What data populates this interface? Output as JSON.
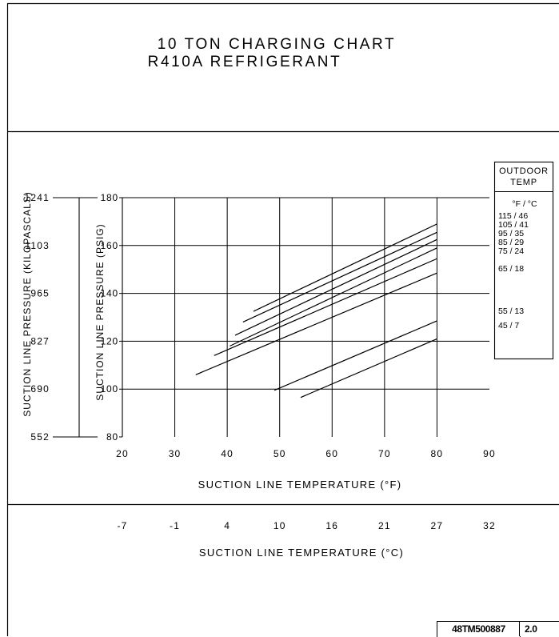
{
  "page": {
    "title_line1": "10 TON CHARGING CHART",
    "title_line2": "R410A REFRIGERANT",
    "doc_number": "48TM500887",
    "doc_revision": "2.0"
  },
  "chart_data": {
    "type": "line",
    "xlabel": "SUCTION LINE TEMPERATURE (°F)",
    "xlabel_secondary": "SUCTION LINE TEMPERATURE (°C)",
    "ylabel": "SUCTION LINE PRESSURE (PSIG)",
    "ylabel_secondary": "SUCTION LINE PRESSURE (KILOPASCALS)",
    "xlim": [
      20,
      90
    ],
    "ylim": [
      80,
      180
    ],
    "x_ticks": [
      20,
      30,
      40,
      50,
      60,
      70,
      80,
      90
    ],
    "y_ticks": [
      80,
      100,
      120,
      140,
      160,
      180
    ],
    "y_ticks_kpa": [
      "552",
      "690",
      "827",
      "965",
      "1103",
      "1241"
    ],
    "x_ticks_celsius": [
      "-7",
      "-1",
      "4",
      "10",
      "16",
      "21",
      "27",
      "32"
    ],
    "grid": true,
    "legend": {
      "placement": "right",
      "title_line1": "OUTDOOR",
      "title_line2": "TEMP",
      "units": "°F / °C",
      "entries": [
        "115 / 46",
        "105 / 41",
        "95 / 35",
        "85 / 29",
        "75 / 24",
        "65 / 18",
        "55 / 13",
        "45 / 7"
      ]
    },
    "series": [
      {
        "name": "115 / 46",
        "x": [
          45,
          80
        ],
        "y": [
          132.5,
          169
        ]
      },
      {
        "name": "105 / 41",
        "x": [
          43,
          80
        ],
        "y": [
          128,
          165.5
        ]
      },
      {
        "name": "95 / 35",
        "x": [
          41.5,
          80
        ],
        "y": [
          122.5,
          162.5
        ]
      },
      {
        "name": "85 / 29",
        "x": [
          40.5,
          80
        ],
        "y": [
          118,
          159
        ]
      },
      {
        "name": "75 / 24",
        "x": [
          37.5,
          80
        ],
        "y": [
          114,
          154.5
        ]
      },
      {
        "name": "65 / 18",
        "x": [
          34,
          80
        ],
        "y": [
          106,
          148.5
        ]
      },
      {
        "name": "55 / 13",
        "x": [
          49,
          80
        ],
        "y": [
          99.5,
          128.5
        ]
      },
      {
        "name": "45 / 7",
        "x": [
          54,
          80
        ],
        "y": [
          96.5,
          121
        ]
      }
    ]
  }
}
